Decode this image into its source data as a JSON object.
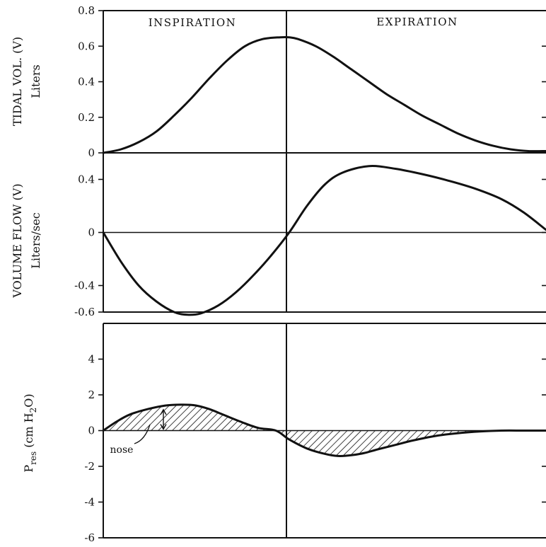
{
  "chart_data": [
    {
      "type": "line",
      "ylabel": "TIDAL VOL. (V)",
      "yunit": "Liters",
      "ylim": [
        0,
        0.8
      ],
      "yticks": [
        0,
        0.2,
        0.4,
        0.6,
        0.8
      ],
      "ytick_labels": [
        "0",
        "0.2",
        "0.4",
        "0.6",
        "0.8"
      ],
      "phases": [
        "INSPIRATION",
        "EXPIRATION"
      ],
      "series": [
        {
          "x": [
            0,
            0.04,
            0.08,
            0.12,
            0.16,
            0.2,
            0.24,
            0.28,
            0.32,
            0.36,
            0.4,
            0.42,
            0.44,
            0.48,
            0.52,
            0.56,
            0.6,
            0.64,
            0.68,
            0.72,
            0.76,
            0.8,
            0.84,
            0.88,
            0.92,
            0.96,
            1.0
          ],
          "y": [
            0,
            0.02,
            0.06,
            0.12,
            0.21,
            0.31,
            0.42,
            0.52,
            0.6,
            0.64,
            0.65,
            0.65,
            0.64,
            0.6,
            0.54,
            0.47,
            0.4,
            0.33,
            0.27,
            0.21,
            0.16,
            0.11,
            0.07,
            0.04,
            0.02,
            0.01,
            0.01
          ]
        }
      ]
    },
    {
      "type": "line",
      "ylabel": "VOLUME FLOW (V)",
      "yunit": "Liters/sec",
      "ylim": [
        -0.6,
        0.6
      ],
      "yticks": [
        -0.6,
        -0.4,
        0,
        0.4
      ],
      "ytick_labels": [
        "-0.6",
        "-0.4",
        "0",
        "0.4"
      ],
      "series": [
        {
          "x": [
            0,
            0.04,
            0.08,
            0.12,
            0.16,
            0.19,
            0.22,
            0.26,
            0.3,
            0.34,
            0.38,
            0.42,
            0.46,
            0.5,
            0.54,
            0.6,
            0.66,
            0.72,
            0.78,
            0.84,
            0.9,
            0.95,
            1.0
          ],
          "y": [
            0,
            -0.22,
            -0.4,
            -0.52,
            -0.6,
            -0.62,
            -0.61,
            -0.55,
            -0.45,
            -0.32,
            -0.17,
            0,
            0.2,
            0.36,
            0.45,
            0.5,
            0.48,
            0.44,
            0.39,
            0.33,
            0.25,
            0.15,
            0.02
          ]
        }
      ]
    },
    {
      "type": "area",
      "ylabel": "Pres (cm H2O)",
      "ylabel_main": "P",
      "ylabel_sub": "res",
      "ylabel_rest": " (cm H",
      "ylabel_sub2": "2",
      "ylabel_end": "O)",
      "ylim": [
        -6,
        6
      ],
      "yticks": [
        -6,
        -4,
        -2,
        0,
        2,
        4
      ],
      "ytick_labels": [
        "-6",
        "-4",
        "-2",
        "0",
        "2",
        "4"
      ],
      "annotation": "nose",
      "series": [
        {
          "x": [
            0,
            0.03,
            0.06,
            0.1,
            0.14,
            0.18,
            0.21,
            0.24,
            0.27,
            0.31,
            0.35,
            0.39,
            0.42,
            0.46,
            0.5,
            0.53,
            0.56,
            0.59,
            0.62,
            0.66,
            0.7,
            0.75,
            0.8,
            0.85,
            0.9,
            0.95,
            1.0
          ],
          "y": [
            0,
            0.5,
            0.9,
            1.2,
            1.4,
            1.45,
            1.4,
            1.2,
            0.9,
            0.5,
            0.15,
            0,
            -0.5,
            -1.0,
            -1.3,
            -1.42,
            -1.38,
            -1.25,
            -1.05,
            -0.8,
            -0.55,
            -0.3,
            -0.15,
            -0.05,
            0,
            0,
            0
          ]
        }
      ]
    }
  ]
}
